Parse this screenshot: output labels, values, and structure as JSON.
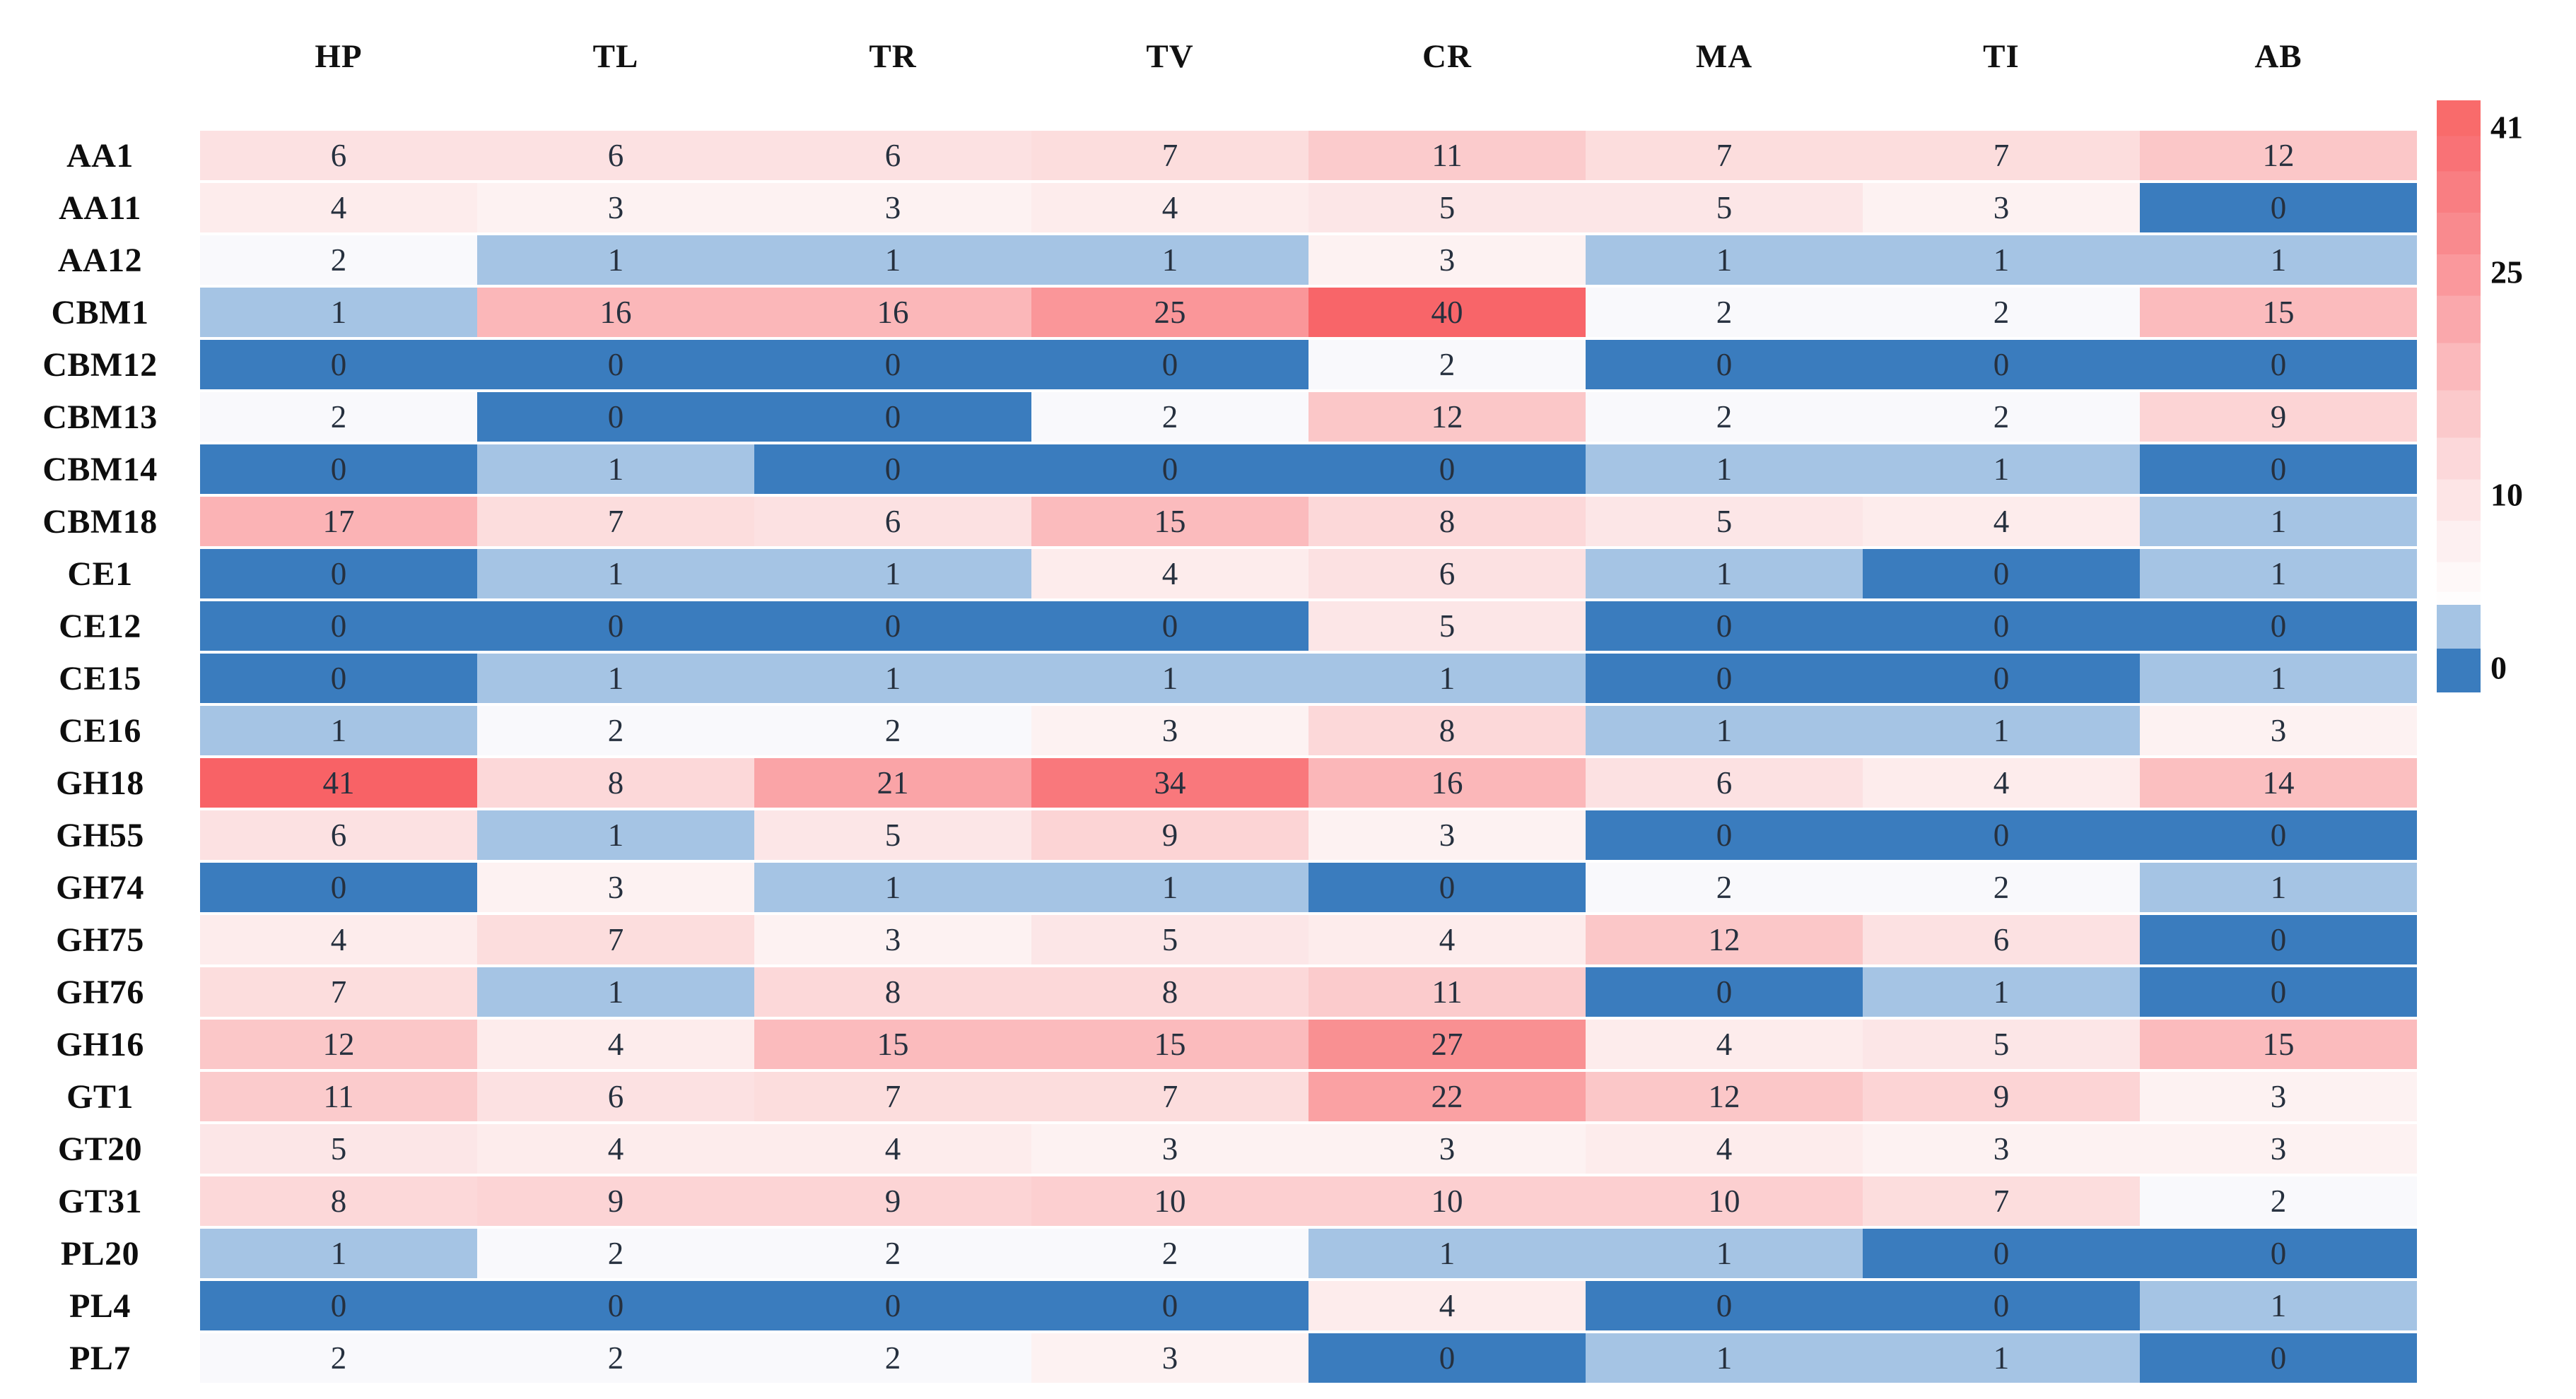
{
  "chart_data": {
    "type": "heatmap",
    "title": "",
    "xlabel": "",
    "ylabel": "",
    "legend_position": "right",
    "grid": false,
    "columns": [
      "HP",
      "TL",
      "TR",
      "TV",
      "CR",
      "MA",
      "TI",
      "AB"
    ],
    "rows": [
      "AA1",
      "AA11",
      "AA12",
      "CBM1",
      "CBM12",
      "CBM13",
      "CBM14",
      "CBM18",
      "CE1",
      "CE12",
      "CE15",
      "CE16",
      "GH18",
      "GH55",
      "GH74",
      "GH75",
      "GH76",
      "GH16",
      "GT1",
      "GT20",
      "GT31",
      "PL20",
      "PL4",
      "PL7"
    ],
    "values": [
      [
        6,
        6,
        6,
        7,
        11,
        7,
        7,
        12
      ],
      [
        4,
        3,
        3,
        4,
        5,
        5,
        3,
        0
      ],
      [
        2,
        1,
        1,
        1,
        3,
        1,
        1,
        1
      ],
      [
        1,
        16,
        16,
        25,
        40,
        2,
        2,
        15
      ],
      [
        0,
        0,
        0,
        0,
        2,
        0,
        0,
        0
      ],
      [
        2,
        0,
        0,
        2,
        12,
        2,
        2,
        9
      ],
      [
        0,
        1,
        0,
        0,
        0,
        1,
        1,
        0
      ],
      [
        17,
        7,
        6,
        15,
        8,
        5,
        4,
        1
      ],
      [
        0,
        1,
        1,
        4,
        6,
        1,
        0,
        1
      ],
      [
        0,
        0,
        0,
        0,
        5,
        0,
        0,
        0
      ],
      [
        0,
        1,
        1,
        1,
        1,
        0,
        0,
        1
      ],
      [
        1,
        2,
        2,
        3,
        8,
        1,
        1,
        3
      ],
      [
        41,
        8,
        21,
        34,
        16,
        6,
        4,
        14
      ],
      [
        6,
        1,
        5,
        9,
        3,
        0,
        0,
        0
      ],
      [
        0,
        3,
        1,
        1,
        0,
        2,
        2,
        1
      ],
      [
        4,
        7,
        3,
        5,
        4,
        12,
        6,
        0
      ],
      [
        7,
        1,
        8,
        8,
        11,
        0,
        1,
        0
      ],
      [
        12,
        4,
        15,
        15,
        27,
        4,
        5,
        15
      ],
      [
        11,
        6,
        7,
        7,
        22,
        12,
        9,
        3
      ],
      [
        5,
        4,
        4,
        3,
        3,
        4,
        3,
        3
      ],
      [
        8,
        9,
        9,
        10,
        10,
        10,
        7,
        2
      ],
      [
        1,
        2,
        2,
        2,
        1,
        1,
        0,
        0
      ],
      [
        0,
        0,
        0,
        0,
        4,
        0,
        0,
        1
      ],
      [
        2,
        2,
        2,
        3,
        0,
        1,
        1,
        0
      ]
    ],
    "colorbar": {
      "ticks": [
        "41",
        "25",
        "10",
        "0"
      ],
      "min": 0,
      "max": 41
    },
    "palette": {
      "blue_dark": "#3A7CBE",
      "blue_light": "#A5C4E4",
      "blue_faint": "#F9F9FC",
      "pink_white": "#FDFAFA",
      "red_max": "#F86266",
      "cell_text": "#26303E"
    }
  }
}
